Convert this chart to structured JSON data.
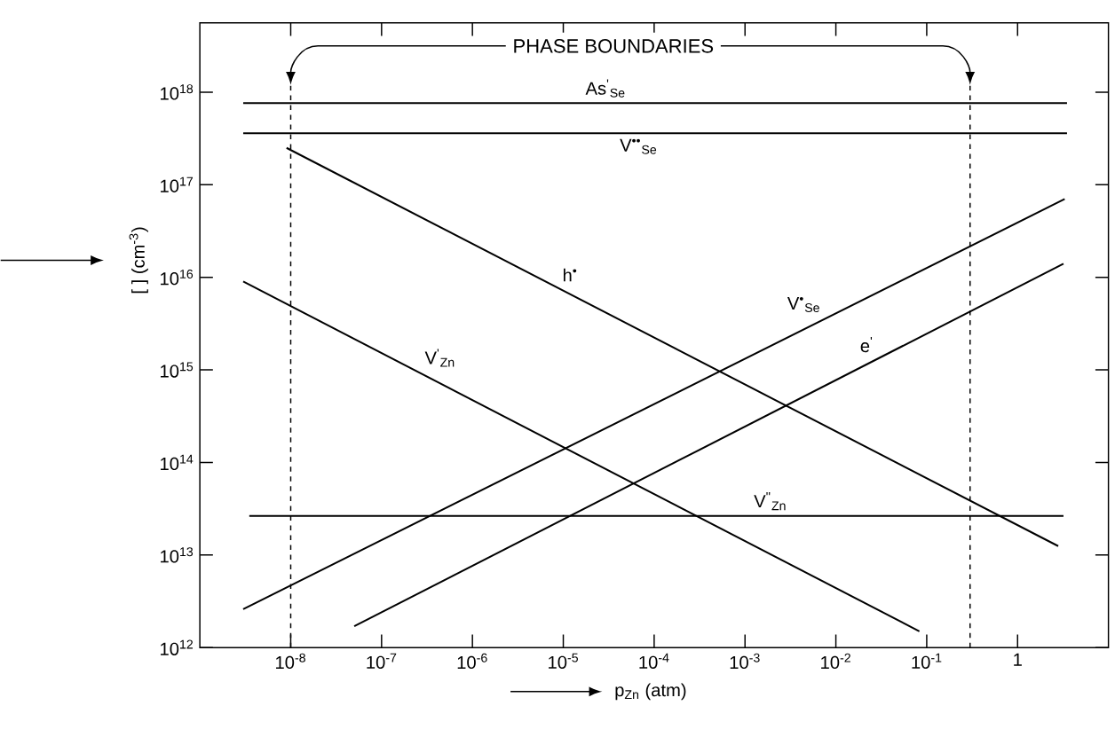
{
  "chart_data": {
    "type": "line",
    "xlabel": "p$_{Zn}$ (atm)",
    "ylabel": "[ ] (cm$^{-3}$)",
    "log": "xy",
    "grid": false,
    "marker": "none",
    "line_style": "solid",
    "xlim": [
      1e-09,
      10
    ],
    "ylim": [
      1000000000000.0,
      5.6e+18
    ],
    "xticks": [
      {
        "value": 1e-08,
        "label": "10$^{-8}$"
      },
      {
        "value": 1e-07,
        "label": "10$^{-7}$"
      },
      {
        "value": 1e-06,
        "label": "10$^{-6}$"
      },
      {
        "value": 1e-05,
        "label": "10$^{-5}$"
      },
      {
        "value": 0.0001,
        "label": "10$^{-4}$"
      },
      {
        "value": 0.001,
        "label": "10$^{-3}$"
      },
      {
        "value": 0.01,
        "label": "10$^{-2}$"
      },
      {
        "value": 0.1,
        "label": "10$^{-1}$"
      },
      {
        "value": 1,
        "label": "1"
      }
    ],
    "yticks": [
      {
        "value": 1000000000000.0,
        "label": "10$^{12}$"
      },
      {
        "value": 10000000000000.0,
        "label": "10$^{13}$"
      },
      {
        "value": 100000000000000.0,
        "label": "10$^{14}$"
      },
      {
        "value": 1000000000000000.0,
        "label": "10$^{15}$"
      },
      {
        "value": 1e+16,
        "label": "10$^{16}$"
      },
      {
        "value": 1e+17,
        "label": "10$^{17}$"
      },
      {
        "value": 1e+18,
        "label": "10$^{18}$"
      }
    ],
    "series": [
      {
        "name": "As$^{'}$$_{Se}$",
        "color": "#000000",
        "x": [
          3e-09,
          3.5
        ],
        "values": [
          7.6e+17,
          7.6e+17
        ]
      },
      {
        "name": "V$^{••}$$_{Se}$",
        "color": "#000000",
        "x": [
          3e-09,
          3.5
        ],
        "values": [
          3.6e+17,
          3.6e+17
        ]
      },
      {
        "name": "h$^{•}$",
        "color": "#000000",
        "x": [
          9e-09,
          2.8
        ],
        "values": [
          2.5e+17,
          12500000000000.0
        ]
      },
      {
        "name": "V$^{'}$$_{Zn}$",
        "color": "#000000",
        "x": [
          3e-09,
          0.083
        ],
        "values": [
          9000000000000000.0,
          1500000000000.0
        ]
      },
      {
        "name": "V$^{''}$$_{Zn}$",
        "color": "#000000",
        "x": [
          3.5e-09,
          3.2
        ],
        "values": [
          26500000000000.0,
          26500000000000.0
        ]
      },
      {
        "name": "V$^{•}$$_{Se}$",
        "color": "#000000",
        "x": [
          3e-09,
          3.3
        ],
        "values": [
          2600000000000.0,
          7e+16
        ]
      },
      {
        "name": "e$^{'}$",
        "color": "#000000",
        "x": [
          5e-08,
          3.2
        ],
        "values": [
          1700000000000.0,
          1.4e+16
        ]
      }
    ],
    "ref_lines": [
      {
        "axis": "x",
        "value": 1e-08,
        "line_style": "dashed",
        "color": "#000000"
      },
      {
        "axis": "x",
        "value": 0.3,
        "line_style": "dashed",
        "color": "#000000"
      }
    ],
    "annotations": [
      {
        "text": "PHASE BOUNDARIES",
        "x": 1e-08,
        "y": 1.2e+18
      }
    ]
  }
}
